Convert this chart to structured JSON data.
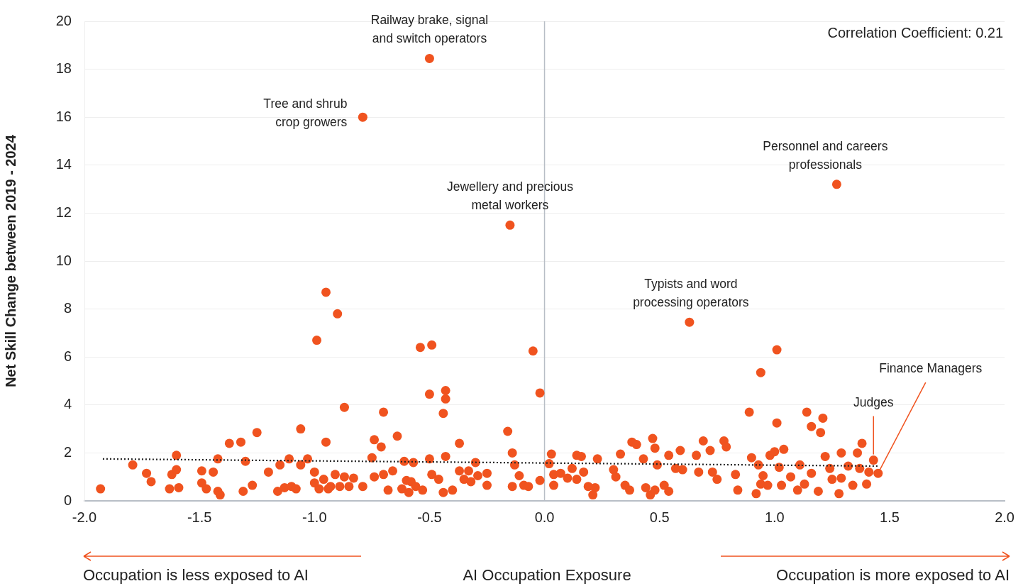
{
  "chart_data": {
    "type": "scatter",
    "xlabel": "AI Occupation Exposure",
    "ylabel": "Net Skill Change between 2019 - 2024",
    "xlim": [
      -2,
      2
    ],
    "xticks": [
      {
        "value": -2,
        "label": "-2.0"
      },
      {
        "value": -1.5,
        "label": "-1.5"
      },
      {
        "value": -1,
        "label": "-1.0"
      },
      {
        "value": -0.5,
        "label": "-0.5"
      },
      {
        "value": 0,
        "label": "0.0"
      },
      {
        "value": 0.5,
        "label": "0.5"
      },
      {
        "value": 1,
        "label": "1.0"
      },
      {
        "value": 1.5,
        "label": "1.5"
      },
      {
        "value": 2,
        "label": "2.0"
      }
    ],
    "ylim": [
      0,
      20
    ],
    "yticks": [
      0,
      2,
      4,
      6,
      8,
      10,
      12,
      14,
      16,
      18,
      20
    ],
    "grid": "y",
    "marker": "circle",
    "ref_lines": [
      {
        "axis": "x",
        "value": 0,
        "color": "#b8bec6"
      }
    ],
    "series": [
      {
        "type": "scatter",
        "color": "#f0531f",
        "x": [
          -1.93,
          -1.79,
          -1.73,
          -1.71,
          -1.63,
          -1.62,
          -1.6,
          -1.6,
          -1.59,
          -1.49,
          -1.49,
          -1.47,
          -1.44,
          -1.42,
          -1.41,
          -1.42,
          -1.37,
          -1.32,
          -1.3,
          -1.31,
          -1.27,
          -1.25,
          -1.2,
          -1.16,
          -1.15,
          -1.13,
          -1.11,
          -1.1,
          -1.08,
          -1.06,
          -1.06,
          -1.03,
          -1.0,
          -0.99,
          -1.0,
          -0.98,
          -0.96,
          -0.95,
          -0.95,
          -0.94,
          -0.93,
          -0.91,
          -0.9,
          -0.89,
          -0.87,
          -0.87,
          -0.85,
          -0.83,
          -0.79,
          -0.79,
          -0.75,
          -0.74,
          -0.74,
          -0.71,
          -0.7,
          -0.7,
          -0.68,
          -0.66,
          -0.64,
          -0.62,
          -0.61,
          -0.6,
          -0.59,
          -0.58,
          -0.57,
          -0.56,
          -0.54,
          -0.53,
          -0.5,
          -0.5,
          -0.49,
          -0.5,
          -0.49,
          -0.46,
          -0.44,
          -0.43,
          -0.43,
          -0.43,
          -0.44,
          -0.4,
          -0.37,
          -0.37,
          -0.35,
          -0.33,
          -0.32,
          -0.3,
          -0.29,
          -0.25,
          -0.25,
          -0.16,
          -0.15,
          -0.14,
          -0.13,
          -0.14,
          -0.11,
          -0.09,
          -0.07,
          -0.05,
          -0.02,
          -0.02,
          0.02,
          0.03,
          0.04,
          0.04,
          0.07,
          0.1,
          0.12,
          0.14,
          0.14,
          0.16,
          0.17,
          0.19,
          0.21,
          0.22,
          0.23,
          0.3,
          0.31,
          0.33,
          0.35,
          0.37,
          0.38,
          0.4,
          0.43,
          0.44,
          0.46,
          0.47,
          0.48,
          0.48,
          0.49,
          0.52,
          0.54,
          0.54,
          0.57,
          0.59,
          0.6,
          0.63,
          0.66,
          0.67,
          0.69,
          0.72,
          0.73,
          0.75,
          0.78,
          0.79,
          0.83,
          0.84,
          0.89,
          0.9,
          0.92,
          0.93,
          0.94,
          0.94,
          0.95,
          0.97,
          0.98,
          1.0,
          1.01,
          1.01,
          1.02,
          1.03,
          1.04,
          1.07,
          1.1,
          1.11,
          1.13,
          1.14,
          1.16,
          1.16,
          1.19,
          1.2,
          1.21,
          1.22,
          1.24,
          1.25,
          1.27,
          1.28,
          1.29,
          1.29,
          1.32,
          1.34,
          1.36,
          1.37,
          1.38,
          1.41,
          1.4,
          1.43,
          1.45
        ],
        "values": [
          0.5,
          1.5,
          1.15,
          0.8,
          0.5,
          1.1,
          1.3,
          1.9,
          0.55,
          1.25,
          0.75,
          0.5,
          1.2,
          0.4,
          0.25,
          1.75,
          2.4,
          2.45,
          1.65,
          0.4,
          0.65,
          2.85,
          1.2,
          0.4,
          1.5,
          0.55,
          1.75,
          0.6,
          0.5,
          3.0,
          1.5,
          1.75,
          0.75,
          6.7,
          1.2,
          0.5,
          0.9,
          8.7,
          2.45,
          0.5,
          0.6,
          1.1,
          7.8,
          0.6,
          3.9,
          1.0,
          0.6,
          0.95,
          16.0,
          0.6,
          1.8,
          2.55,
          1.0,
          2.25,
          3.7,
          1.1,
          0.45,
          1.25,
          2.7,
          0.5,
          1.65,
          0.85,
          0.35,
          0.8,
          1.6,
          0.6,
          6.4,
          0.45,
          18.45,
          4.45,
          6.5,
          1.75,
          1.1,
          0.9,
          3.65,
          4.6,
          4.25,
          1.85,
          0.35,
          0.45,
          2.4,
          1.25,
          0.9,
          1.25,
          0.8,
          1.6,
          1.05,
          0.65,
          1.15,
          2.9,
          11.5,
          2.0,
          1.5,
          0.6,
          1.05,
          0.65,
          0.6,
          6.25,
          0.85,
          4.5,
          1.55,
          1.95,
          1.1,
          0.65,
          1.15,
          0.95,
          1.35,
          0.9,
          1.9,
          1.85,
          1.2,
          0.6,
          0.25,
          0.55,
          1.75,
          1.3,
          1.0,
          1.95,
          0.65,
          0.45,
          2.45,
          2.35,
          1.75,
          0.55,
          0.25,
          2.6,
          2.2,
          0.45,
          1.5,
          0.65,
          1.9,
          0.4,
          1.35,
          2.1,
          1.3,
          7.45,
          1.9,
          1.2,
          2.5,
          2.1,
          1.2,
          0.9,
          2.5,
          2.25,
          1.1,
          0.45,
          3.7,
          1.8,
          0.3,
          1.5,
          0.7,
          5.35,
          1.05,
          0.65,
          1.9,
          2.05,
          6.3,
          3.25,
          1.4,
          0.65,
          2.15,
          1.0,
          0.45,
          1.5,
          0.7,
          3.7,
          3.1,
          1.15,
          0.4,
          2.85,
          3.45,
          1.85,
          1.35,
          0.9,
          13.2,
          0.3,
          2.0,
          0.95,
          1.45,
          0.65,
          2.0,
          1.35,
          2.4,
          1.2,
          0.7,
          1.7,
          1.15
        ]
      },
      {
        "type": "line",
        "color": "#222222",
        "line_style": "dotted",
        "marker": "none",
        "x": [
          -1.92,
          1.45
        ],
        "values": [
          1.75,
          1.45
        ]
      }
    ],
    "annotations": [
      "Correlation Coefficient: 0.21",
      {
        "text": "Railway brake, signal and switch operators",
        "x": -0.5,
        "y": 18.45
      },
      {
        "text": "Tree and shrub crop growers",
        "x": -0.79,
        "y": 16.0
      },
      {
        "text": "Jewellery and precious metal workers",
        "x": -0.15,
        "y": 11.5
      },
      {
        "text": "Personnel and careers professionals",
        "x": 1.27,
        "y": 13.2
      },
      {
        "text": "Typists and word processing operators",
        "x": 0.63,
        "y": 7.45
      },
      {
        "text": "Judges",
        "x": 1.43,
        "y": 1.7
      },
      {
        "text": "Finance Managers",
        "x": 1.45,
        "y": 1.15
      },
      "Occupation is less exposed to AI",
      "Occupation is more exposed to AI"
    ]
  }
}
